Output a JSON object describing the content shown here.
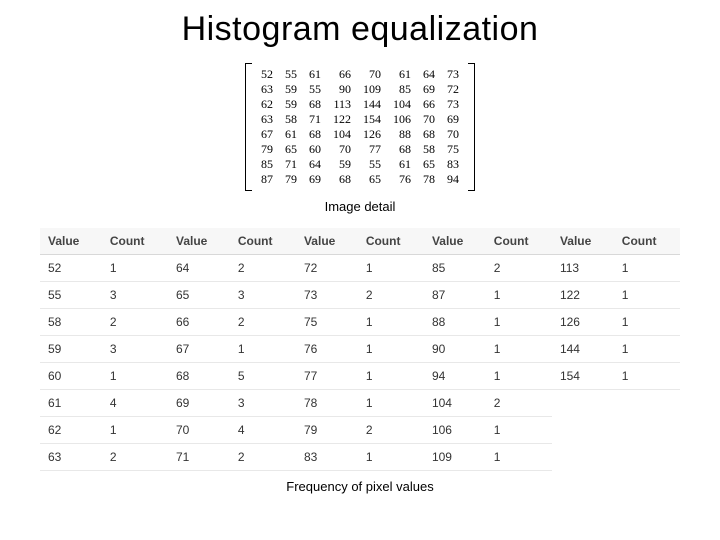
{
  "title": "Histogram equalization",
  "matrix": {
    "caption": "Image detail",
    "rows": [
      [
        52,
        55,
        61,
        66,
        70,
        61,
        64,
        73
      ],
      [
        63,
        59,
        55,
        90,
        109,
        85,
        69,
        72
      ],
      [
        62,
        59,
        68,
        113,
        144,
        104,
        66,
        73
      ],
      [
        63,
        58,
        71,
        122,
        154,
        106,
        70,
        69
      ],
      [
        67,
        61,
        68,
        104,
        126,
        88,
        68,
        70
      ],
      [
        79,
        65,
        60,
        70,
        77,
        68,
        58,
        75
      ],
      [
        85,
        71,
        64,
        59,
        55,
        61,
        65,
        83
      ],
      [
        87,
        79,
        69,
        68,
        65,
        76,
        78,
        94
      ]
    ],
    "font_family": "Times New Roman",
    "font_size_pt": 9,
    "bracket_color": "#000000"
  },
  "frequency": {
    "caption": "Frequency of pixel values",
    "column_pairs": 5,
    "header_labels": [
      "Value",
      "Count"
    ],
    "header_bg": "#f7f7f7",
    "row_border": "#e8e8e8",
    "header_border": "#d8d8d8",
    "font_size_pt": 9,
    "rows": [
      [
        52,
        1,
        64,
        2,
        72,
        1,
        85,
        2,
        113,
        1
      ],
      [
        55,
        3,
        65,
        3,
        73,
        2,
        87,
        1,
        122,
        1
      ],
      [
        58,
        2,
        66,
        2,
        75,
        1,
        88,
        1,
        126,
        1
      ],
      [
        59,
        3,
        67,
        1,
        76,
        1,
        90,
        1,
        144,
        1
      ],
      [
        60,
        1,
        68,
        5,
        77,
        1,
        94,
        1,
        154,
        1
      ],
      [
        61,
        4,
        69,
        3,
        78,
        1,
        104,
        2,
        null,
        null
      ],
      [
        62,
        1,
        70,
        4,
        79,
        2,
        106,
        1,
        null,
        null
      ],
      [
        63,
        2,
        71,
        2,
        83,
        1,
        109,
        1,
        null,
        null
      ]
    ]
  },
  "colors": {
    "background": "#ffffff",
    "text": "#000000",
    "table_text": "#333333"
  }
}
